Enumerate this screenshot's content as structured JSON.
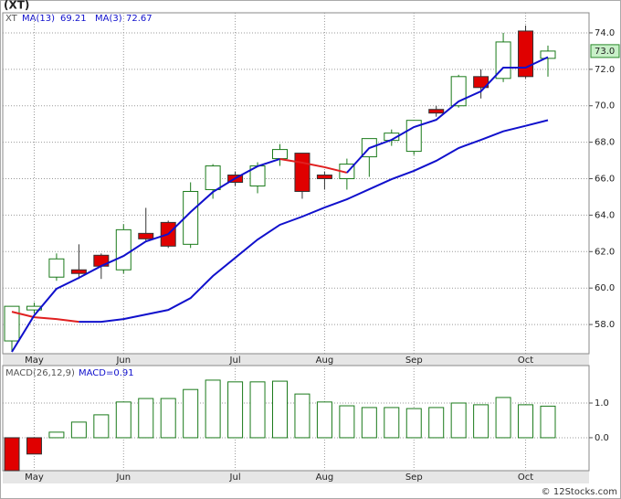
{
  "chart_data": [
    {
      "type": "candlestick",
      "title": "(XT)",
      "symbol": "XT",
      "categories": [
        null,
        "May",
        null,
        null,
        null,
        "Jun",
        null,
        null,
        null,
        null,
        "Jul",
        null,
        null,
        null,
        "Aug",
        null,
        null,
        null,
        "Sep",
        null,
        null,
        null,
        null,
        "Oct",
        null
      ],
      "open": [
        57.1,
        58.8,
        60.6,
        61.0,
        61.8,
        61.0,
        63.0,
        63.6,
        62.4,
        65.4,
        66.2,
        65.6,
        67.1,
        67.4,
        66.2,
        66.0,
        67.2,
        68.1,
        67.5,
        69.8,
        70.0,
        71.6,
        71.5,
        74.1,
        72.6
      ],
      "high": [
        59.0,
        59.2,
        61.9,
        62.4,
        61.9,
        63.5,
        64.4,
        63.7,
        65.8,
        66.8,
        66.4,
        66.9,
        67.9,
        67.4,
        66.4,
        67.1,
        68.2,
        68.7,
        69.2,
        70.0,
        71.7,
        72.0,
        74.0,
        74.4,
        73.3
      ],
      "low": [
        56.5,
        58.6,
        60.4,
        60.5,
        60.5,
        60.8,
        62.6,
        62.2,
        62.2,
        64.9,
        65.6,
        65.2,
        66.7,
        64.9,
        65.4,
        65.4,
        66.1,
        67.8,
        67.3,
        69.4,
        69.9,
        70.4,
        71.3,
        71.5,
        71.6
      ],
      "close": [
        59.0,
        59.0,
        61.6,
        60.8,
        61.2,
        63.2,
        62.7,
        62.3,
        65.3,
        66.7,
        65.8,
        66.7,
        67.6,
        65.3,
        66.0,
        66.8,
        68.2,
        68.5,
        69.2,
        69.6,
        71.6,
        71.0,
        73.5,
        71.6,
        73.0
      ],
      "up_color": "#1a7a1a",
      "down_color": "#e00000",
      "series": [
        {
          "name": "MA(13)",
          "color": "#1010cc",
          "down_color": "#e02020",
          "values": [
            58.7,
            58.4,
            58.3,
            58.15,
            58.15,
            58.3,
            58.55,
            58.8,
            59.45,
            60.66,
            61.66,
            62.66,
            63.47,
            63.92,
            64.42,
            64.87,
            65.42,
            65.97,
            66.43,
            66.98,
            67.68,
            68.13,
            68.6,
            68.9,
            69.21
          ]
        },
        {
          "name": "MA(3)",
          "color": "#1010cc",
          "down_color": "#e02020",
          "values": [
            56.5,
            58.5,
            59.96,
            60.56,
            61.21,
            61.76,
            62.56,
            62.96,
            64.17,
            65.27,
            66.02,
            66.68,
            67.08,
            66.88,
            66.63,
            66.33,
            67.68,
            68.13,
            68.83,
            69.23,
            70.24,
            70.79,
            72.09,
            72.09,
            72.67
          ]
        }
      ],
      "price_tag": {
        "value": 73.0,
        "label": "73.0"
      },
      "ylim": [
        56.4,
        75.1
      ],
      "yticks": [
        {
          "value": 58,
          "label": "58.0"
        },
        {
          "value": 60,
          "label": "60.0"
        },
        {
          "value": 62,
          "label": "62.0"
        },
        {
          "value": 64,
          "label": "64.0"
        },
        {
          "value": 66,
          "label": "66.0"
        },
        {
          "value": 68,
          "label": "68.0"
        },
        {
          "value": 70,
          "label": "70.0"
        },
        {
          "value": 72,
          "label": "72.0"
        },
        {
          "value": 74,
          "label": "74.0"
        }
      ],
      "grid": true
    },
    {
      "type": "bar",
      "name": "MACD(26,12,9)",
      "legend_label": "MACD=0.91",
      "categories": [
        null,
        "May",
        null,
        null,
        null,
        "Jun",
        null,
        null,
        null,
        null,
        "Jul",
        null,
        null,
        null,
        "Aug",
        null,
        null,
        null,
        "Sep",
        null,
        null,
        null,
        null,
        "Oct",
        null
      ],
      "values": [
        -0.95,
        -0.47,
        0.16,
        0.45,
        0.66,
        1.03,
        1.13,
        1.13,
        1.39,
        1.66,
        1.61,
        1.61,
        1.63,
        1.26,
        1.03,
        0.92,
        0.87,
        0.87,
        0.84,
        0.87,
        1.0,
        0.95,
        1.16,
        0.95,
        0.91
      ],
      "up_color": "#1a7a1a",
      "down_color": "#e00000",
      "ylim": [
        -0.95,
        2.08
      ],
      "yticks": [
        {
          "value": 0,
          "label": "0.0"
        },
        {
          "value": 1,
          "label": "1.0"
        }
      ],
      "grid": true
    }
  ],
  "footer": "© 12Stocks.com"
}
